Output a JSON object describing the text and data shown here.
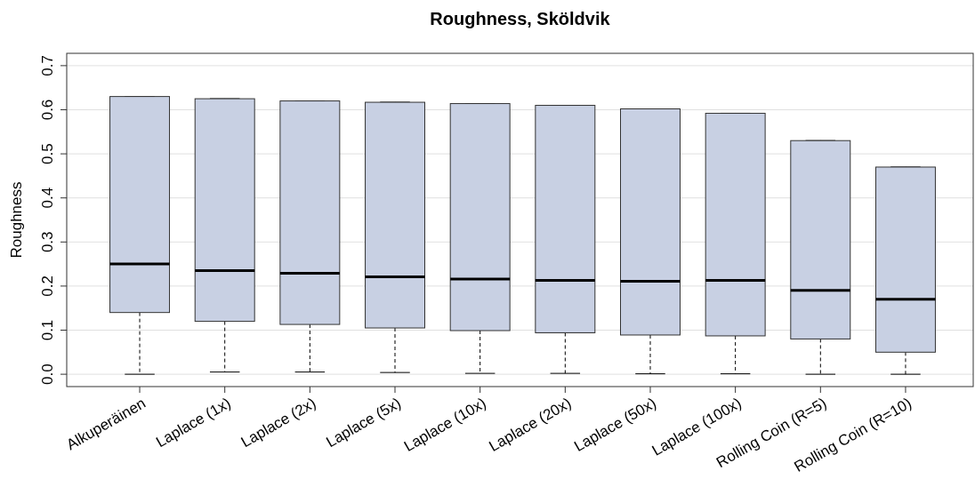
{
  "chart_data": {
    "type": "box",
    "title": "Roughness, Sköldvik",
    "ylabel": "Roughness",
    "categories": [
      "Alkuperäinen",
      "Laplace (1x)",
      "Laplace (2x)",
      "Laplace (5x)",
      "Laplace (10x)",
      "Laplace (20x)",
      "Laplace (50x)",
      "Laplace (100x)",
      "Rolling Coin (R=5)",
      "Rolling Coin (R=10)"
    ],
    "color": "#c8d0e3",
    "boxes": [
      {
        "low": 0.0,
        "q1": 0.14,
        "median": 0.25,
        "q3": 0.63,
        "high": 0.63
      },
      {
        "low": 0.005,
        "q1": 0.12,
        "median": 0.235,
        "q3": 0.625,
        "high": 0.625
      },
      {
        "low": 0.005,
        "q1": 0.113,
        "median": 0.229,
        "q3": 0.62,
        "high": 0.62
      },
      {
        "low": 0.004,
        "q1": 0.105,
        "median": 0.221,
        "q3": 0.617,
        "high": 0.617
      },
      {
        "low": 0.002,
        "q1": 0.099,
        "median": 0.216,
        "q3": 0.614,
        "high": 0.614
      },
      {
        "low": 0.002,
        "q1": 0.094,
        "median": 0.213,
        "q3": 0.61,
        "high": 0.61
      },
      {
        "low": 0.001,
        "q1": 0.089,
        "median": 0.211,
        "q3": 0.602,
        "high": 0.602
      },
      {
        "low": 0.001,
        "q1": 0.087,
        "median": 0.213,
        "q3": 0.592,
        "high": 0.592
      },
      {
        "low": 0.0,
        "q1": 0.08,
        "median": 0.19,
        "q3": 0.53,
        "high": 0.53
      },
      {
        "low": 0.0,
        "q1": 0.05,
        "median": 0.17,
        "q3": 0.47,
        "high": 0.47
      }
    ],
    "ylim": [
      -0.028,
      0.728
    ],
    "yticks": [
      {
        "value": 0,
        "label": "0.0"
      },
      0.1,
      0.2,
      0.3,
      0.4,
      0.5,
      0.6,
      0.7
    ],
    "grid": "y"
  }
}
